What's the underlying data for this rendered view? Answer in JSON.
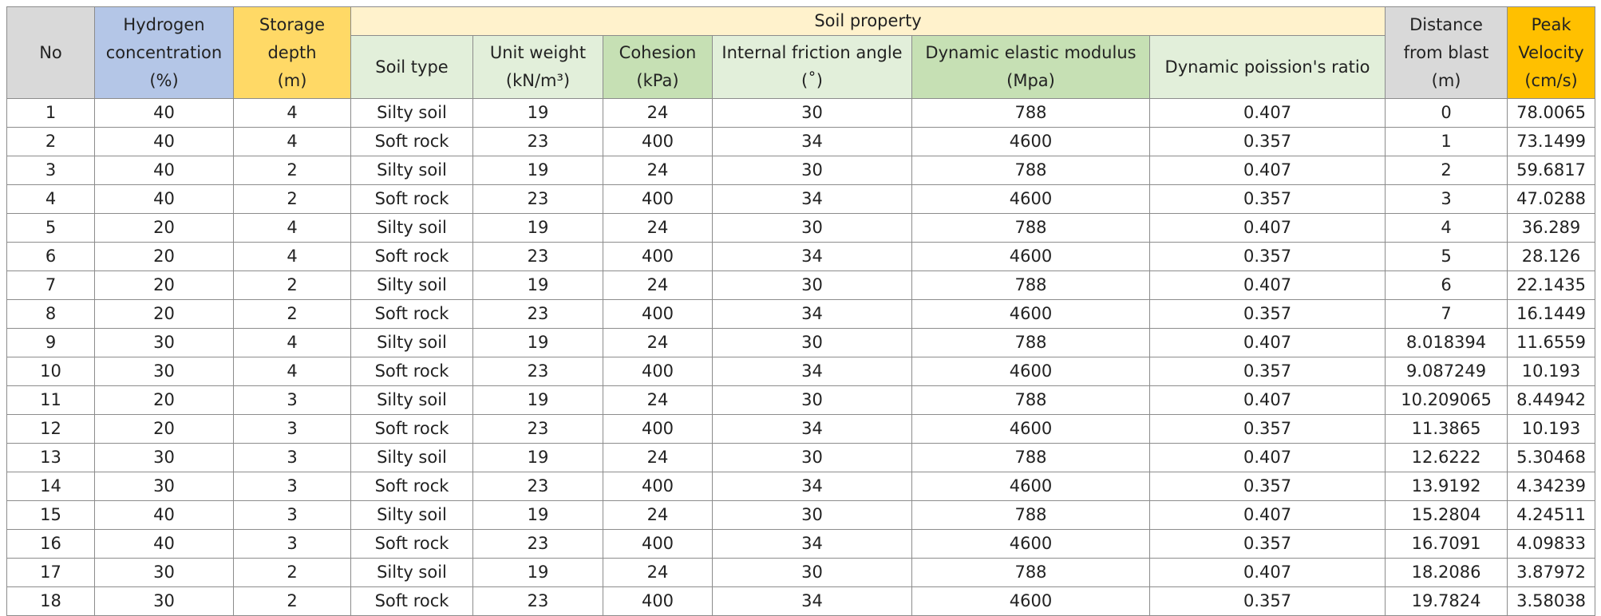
{
  "table": {
    "header": {
      "no": [
        "No"
      ],
      "hydrogen": [
        "Hydrogen",
        "concentration",
        "(%)"
      ],
      "depth": [
        "Storage",
        "depth",
        "(m)"
      ],
      "soil_property": "Soil property",
      "soil_columns": [
        [
          "Soil type"
        ],
        [
          "Unit weight",
          "(kN/m³)"
        ],
        [
          "Cohesion",
          "(kPa)"
        ],
        [
          "Internal friction angle",
          "(˚)"
        ],
        [
          "Dynamic elastic modulus",
          "(Mpa)"
        ],
        [
          "Dynamic poission's ratio"
        ]
      ],
      "distance": [
        "Distance",
        "from blast",
        "(m)"
      ],
      "velocity": [
        "Peak",
        "Velocity",
        "(cm/s)"
      ]
    },
    "rows": [
      [
        1,
        40,
        4,
        "Silty soil",
        19,
        24,
        30,
        788,
        0.407,
        0,
        78.0065
      ],
      [
        2,
        40,
        4,
        "Soft rock",
        23,
        400,
        34,
        4600,
        0.357,
        1,
        73.1499
      ],
      [
        3,
        40,
        2,
        "Silty soil",
        19,
        24,
        30,
        788,
        0.407,
        2,
        59.6817
      ],
      [
        4,
        40,
        2,
        "Soft rock",
        23,
        400,
        34,
        4600,
        0.357,
        3,
        47.0288
      ],
      [
        5,
        20,
        4,
        "Silty soil",
        19,
        24,
        30,
        788,
        0.407,
        4,
        36.289
      ],
      [
        6,
        20,
        4,
        "Soft rock",
        23,
        400,
        34,
        4600,
        0.357,
        5,
        28.126
      ],
      [
        7,
        20,
        2,
        "Silty soil",
        19,
        24,
        30,
        788,
        0.407,
        6,
        22.1435
      ],
      [
        8,
        20,
        2,
        "Soft rock",
        23,
        400,
        34,
        4600,
        0.357,
        7,
        16.1449
      ],
      [
        9,
        30,
        4,
        "Silty soil",
        19,
        24,
        30,
        788,
        0.407,
        8.018394,
        11.6559
      ],
      [
        10,
        30,
        4,
        "Soft rock",
        23,
        400,
        34,
        4600,
        0.357,
        9.087249,
        10.193
      ],
      [
        11,
        20,
        3,
        "Silty soil",
        19,
        24,
        30,
        788,
        0.407,
        10.209065,
        8.44942
      ],
      [
        12,
        20,
        3,
        "Soft rock",
        23,
        400,
        34,
        4600,
        0.357,
        11.3865,
        10.193
      ],
      [
        13,
        30,
        3,
        "Silty soil",
        19,
        24,
        30,
        788,
        0.407,
        12.6222,
        5.30468
      ],
      [
        14,
        30,
        3,
        "Soft rock",
        23,
        400,
        34,
        4600,
        0.357,
        13.9192,
        4.34239
      ],
      [
        15,
        40,
        3,
        "Silty soil",
        19,
        24,
        30,
        788,
        0.407,
        15.2804,
        4.24511
      ],
      [
        16,
        40,
        3,
        "Soft rock",
        23,
        400,
        34,
        4600,
        0.357,
        16.7091,
        4.09833
      ],
      [
        17,
        30,
        2,
        "Silty soil",
        19,
        24,
        30,
        788,
        0.407,
        18.2086,
        3.87972
      ],
      [
        18,
        30,
        2,
        "Soft rock",
        23,
        400,
        34,
        4600,
        0.357,
        19.7824,
        3.58038
      ]
    ]
  }
}
